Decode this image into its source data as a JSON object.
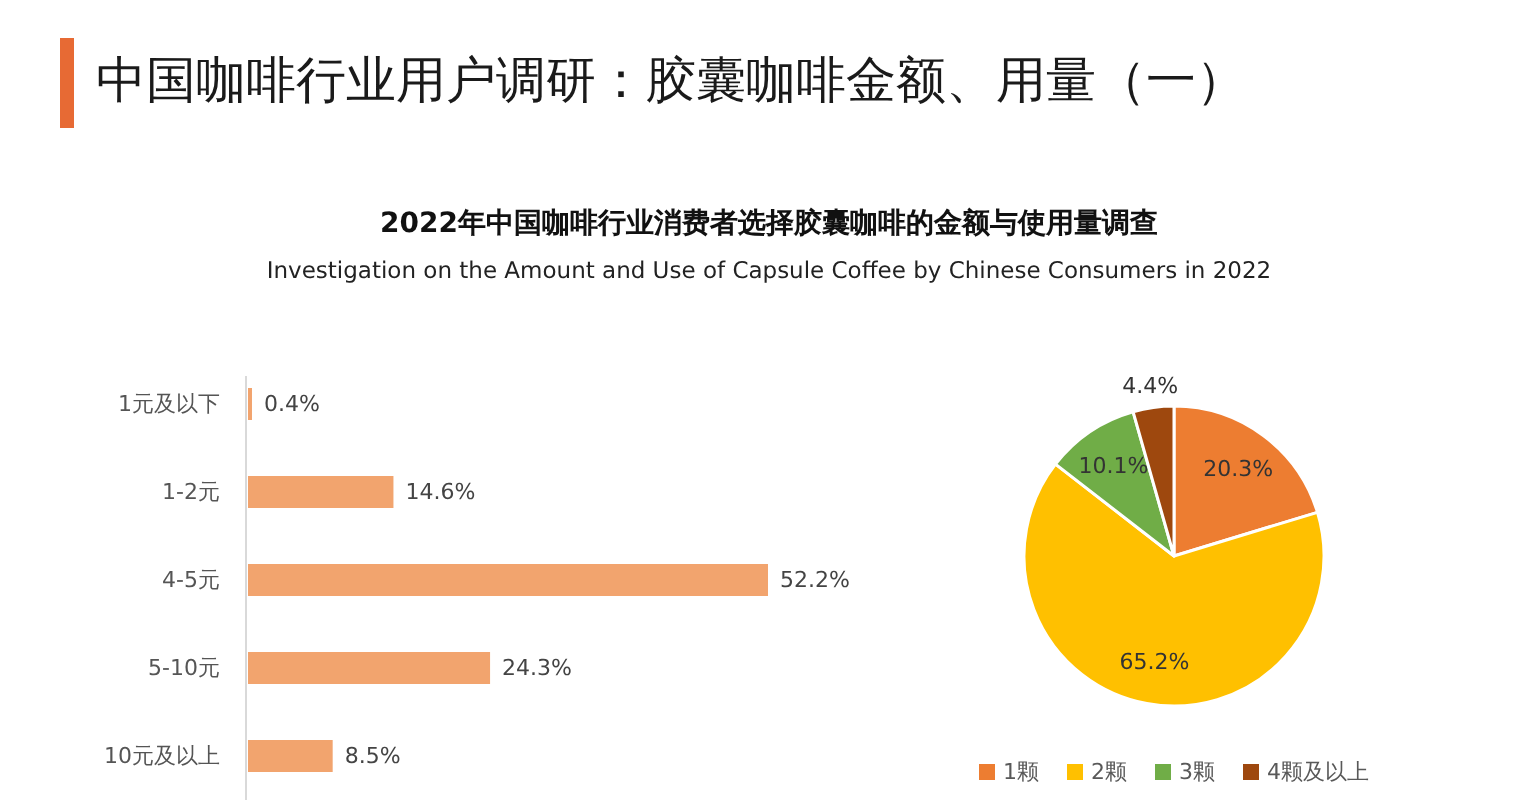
{
  "chart_data": [
    {
      "type": "bar",
      "orientation": "horizontal",
      "title": "2022年中国咖啡行业消费者选择胶囊咖啡的金额与使用量调查",
      "subtitle": "Investigation on the Amount and Use of Capsule Coffee by Chinese Consumers in 2022",
      "annotations": [
        "中国咖啡行业用户调研：胶囊咖啡金额、用量（一）"
      ],
      "categories": [
        "1元及以下",
        "1-2元",
        "4-5元",
        "5-10元",
        "10元及以上"
      ],
      "values": [
        0.4,
        14.6,
        52.2,
        24.3,
        8.5
      ],
      "color": "#f2a46e",
      "value_labels": [
        "0.4%",
        "14.6%",
        "52.2%",
        "24.3%",
        "8.5%"
      ]
    },
    {
      "type": "pie",
      "categories": [
        "1颗",
        "2颗",
        "3颗",
        "4颗及以上"
      ],
      "values": [
        20.3,
        65.2,
        10.1,
        4.4
      ],
      "colors": [
        "#ed7d31",
        "#ffc000",
        "#70ad47",
        "#9e480e"
      ],
      "value_labels": [
        "20.3%",
        "65.2%",
        "10.1%",
        "4.4%"
      ],
      "legend": "bottom"
    }
  ]
}
